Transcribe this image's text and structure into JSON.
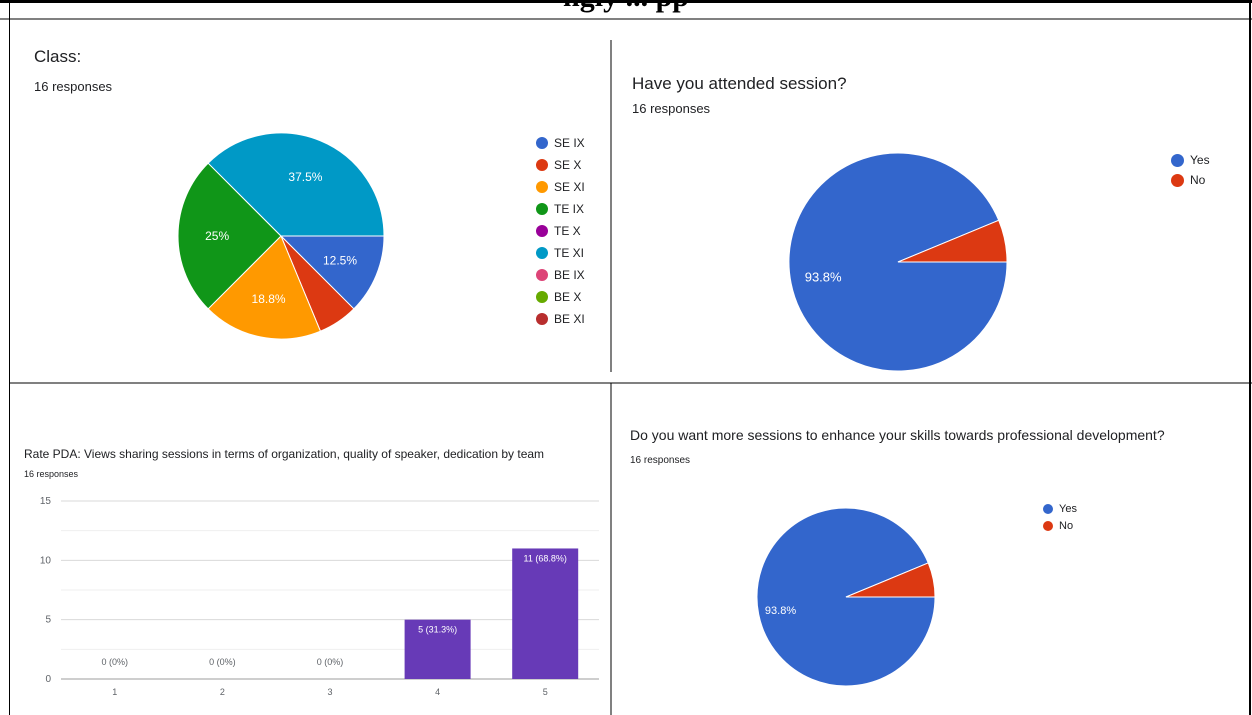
{
  "page": {
    "heading": "ngly ... pp"
  },
  "chart_data": [
    {
      "type": "pie",
      "title": "Class:",
      "subtitle": "16 responses",
      "labels": [
        "SE IX",
        "SE X",
        "SE XI",
        "TE IX",
        "TE X",
        "TE XI",
        "BE IX",
        "BE X",
        "BE XI"
      ],
      "values": [
        2,
        1,
        3,
        4,
        0,
        6,
        0,
        0,
        0
      ],
      "percent_labels": [
        "12.5%",
        "",
        "18.8%",
        "25%",
        "",
        "37.5%",
        "",
        "",
        ""
      ],
      "colors": [
        "#3366cc",
        "#dc3912",
        "#ff9900",
        "#109618",
        "#990099",
        "#0099c6",
        "#dd4477",
        "#66aa00",
        "#b82e2e"
      ],
      "legend": "right"
    },
    {
      "type": "pie",
      "title": "Have you attended session?",
      "subtitle": "16 responses",
      "labels": [
        "Yes",
        "No"
      ],
      "values": [
        15,
        1
      ],
      "percent_labels": [
        "93.8%",
        ""
      ],
      "colors": [
        "#3366cc",
        "#dc3912"
      ],
      "legend": "right"
    },
    {
      "type": "bar",
      "title": "Rate PDA: Views sharing sessions in terms of organization, quality of speaker, dedication by team",
      "subtitle": "16 responses",
      "categories": [
        "1",
        "2",
        "3",
        "4",
        "5"
      ],
      "values": [
        0,
        0,
        0,
        5,
        11
      ],
      "value_labels": [
        "0 (0%)",
        "0 (0%)",
        "0 (0%)",
        "5 (31.3%)",
        "11 (68.8%)"
      ],
      "yticks": [
        "0",
        "5",
        "10",
        "15"
      ],
      "ylim": [
        0,
        15
      ],
      "color": "#673ab7",
      "grid": true
    },
    {
      "type": "pie",
      "title": "Do you want more sessions to enhance your skills towards professional development?",
      "subtitle": "16 responses",
      "labels": [
        "Yes",
        "No"
      ],
      "values": [
        15,
        1
      ],
      "percent_labels": [
        "93.8%",
        ""
      ],
      "colors": [
        "#3366cc",
        "#dc3912"
      ],
      "legend": "right"
    }
  ]
}
